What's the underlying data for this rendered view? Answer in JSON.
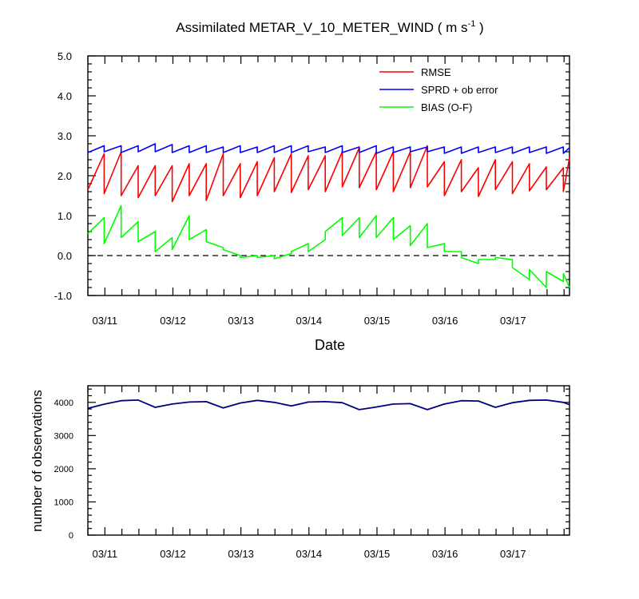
{
  "colors": {
    "rmse": "#ff0000",
    "sprd": "#0000ff",
    "bias": "#00ff00",
    "nobs": "#000080",
    "frame": "#000000",
    "zero_line": "#000000"
  },
  "chart_data": [
    {
      "type": "line",
      "title": "Assimilated METAR_V_10_METER_WIND ( m s",
      "title_sup": "-1",
      "title_tail": " )",
      "xlabel": "Date",
      "ylabel": "",
      "ylim": [
        -1.0,
        5.0
      ],
      "ytick_values": [
        -1,
        0,
        1,
        2,
        3,
        4,
        5
      ],
      "ytick_labels": [
        "-1.0",
        "0.0",
        "1.0",
        "2.0",
        "3.0",
        "4.0",
        "5.0"
      ],
      "xlim": [
        10.75,
        17.83
      ],
      "xtick_values": [
        11,
        12,
        13,
        14,
        15,
        16,
        17
      ],
      "xtick_labels": [
        "03/11",
        "03/12",
        "03/13",
        "03/14",
        "03/15",
        "03/16",
        "03/17"
      ],
      "grid": false,
      "zero_line": "dashed",
      "legend": "top-right",
      "series": [
        {
          "name": "RMSE",
          "color_key": "rmse",
          "x": [
            10.75,
            10.99,
            10.99,
            11.24,
            11.24,
            11.49,
            11.49,
            11.74,
            11.74,
            11.99,
            11.99,
            12.24,
            12.24,
            12.49,
            12.49,
            12.74,
            12.74,
            12.99,
            12.99,
            13.24,
            13.24,
            13.49,
            13.49,
            13.74,
            13.74,
            13.99,
            13.99,
            14.24,
            14.24,
            14.49,
            14.49,
            14.74,
            14.74,
            14.99,
            14.99,
            15.24,
            15.24,
            15.49,
            15.49,
            15.74,
            15.74,
            15.99,
            15.99,
            16.24,
            16.24,
            16.49,
            16.49,
            16.74,
            16.74,
            16.99,
            16.99,
            17.24,
            17.24,
            17.49,
            17.49,
            17.74,
            17.74,
            17.83
          ],
          "y": [
            1.65,
            2.55,
            1.55,
            2.6,
            1.5,
            2.25,
            1.45,
            2.25,
            1.5,
            2.25,
            1.35,
            2.3,
            1.5,
            2.3,
            1.38,
            2.55,
            1.5,
            2.3,
            1.45,
            2.35,
            1.5,
            2.45,
            1.6,
            2.55,
            1.58,
            2.5,
            1.65,
            2.5,
            1.6,
            2.6,
            1.72,
            2.7,
            1.7,
            2.6,
            1.65,
            2.6,
            1.6,
            2.6,
            1.7,
            2.75,
            1.72,
            2.35,
            1.5,
            2.4,
            1.6,
            2.2,
            1.48,
            2.4,
            1.65,
            2.35,
            1.55,
            2.3,
            1.62,
            2.22,
            1.65,
            2.2,
            1.6,
            2.45
          ]
        },
        {
          "name": "SPRD + ob error",
          "color_key": "sprd",
          "x": [
            10.75,
            10.99,
            10.99,
            11.24,
            11.24,
            11.49,
            11.49,
            11.74,
            11.74,
            11.99,
            11.99,
            12.24,
            12.24,
            12.49,
            12.49,
            12.74,
            12.74,
            12.99,
            12.99,
            13.24,
            13.24,
            13.49,
            13.49,
            13.74,
            13.74,
            13.99,
            13.99,
            14.24,
            14.24,
            14.49,
            14.49,
            14.74,
            14.74,
            14.99,
            14.99,
            15.24,
            15.24,
            15.49,
            15.49,
            15.74,
            15.74,
            15.99,
            15.99,
            16.24,
            16.24,
            16.49,
            16.49,
            16.74,
            16.74,
            16.99,
            16.99,
            17.24,
            17.24,
            17.49,
            17.49,
            17.74,
            17.74,
            17.83
          ],
          "y": [
            2.58,
            2.75,
            2.6,
            2.75,
            2.58,
            2.75,
            2.6,
            2.8,
            2.6,
            2.78,
            2.58,
            2.75,
            2.58,
            2.75,
            2.58,
            2.72,
            2.58,
            2.75,
            2.58,
            2.72,
            2.58,
            2.75,
            2.58,
            2.75,
            2.58,
            2.75,
            2.6,
            2.72,
            2.58,
            2.75,
            2.58,
            2.72,
            2.58,
            2.75,
            2.56,
            2.72,
            2.58,
            2.72,
            2.6,
            2.72,
            2.6,
            2.72,
            2.56,
            2.72,
            2.56,
            2.72,
            2.58,
            2.72,
            2.58,
            2.72,
            2.56,
            2.72,
            2.58,
            2.72,
            2.56,
            2.72,
            2.56,
            2.7
          ]
        },
        {
          "name": "BIAS (O-F)",
          "color_key": "bias",
          "x": [
            10.75,
            10.99,
            10.99,
            11.24,
            11.24,
            11.49,
            11.49,
            11.74,
            11.74,
            11.99,
            11.99,
            12.24,
            12.24,
            12.49,
            12.49,
            12.74,
            12.74,
            12.99,
            12.99,
            13.24,
            13.24,
            13.49,
            13.49,
            13.74,
            13.74,
            13.99,
            13.99,
            14.24,
            14.24,
            14.49,
            14.49,
            14.74,
            14.74,
            14.99,
            14.99,
            15.24,
            15.24,
            15.49,
            15.49,
            15.74,
            15.74,
            15.99,
            15.99,
            16.24,
            16.24,
            16.49,
            16.49,
            16.74,
            16.74,
            16.99,
            16.99,
            17.24,
            17.24,
            17.49,
            17.49,
            17.74,
            17.74,
            17.83
          ],
          "y": [
            0.55,
            0.95,
            0.3,
            1.25,
            0.45,
            0.85,
            0.35,
            0.6,
            0.1,
            0.45,
            0.15,
            1.0,
            0.4,
            0.65,
            0.35,
            0.2,
            0.15,
            0.0,
            -0.05,
            0.0,
            -0.05,
            0.0,
            -0.08,
            0.05,
            0.1,
            0.3,
            0.1,
            0.4,
            0.6,
            0.95,
            0.5,
            0.95,
            0.45,
            1.0,
            0.45,
            0.95,
            0.4,
            0.75,
            0.25,
            0.8,
            0.2,
            0.3,
            0.1,
            0.1,
            -0.05,
            -0.2,
            -0.1,
            -0.1,
            -0.05,
            -0.1,
            -0.3,
            -0.6,
            -0.35,
            -0.8,
            -0.4,
            -0.65,
            -0.45,
            -0.8
          ]
        }
      ]
    },
    {
      "type": "line",
      "title": "",
      "xlabel": "",
      "ylabel": "number of observations",
      "ylim": [
        0,
        4500
      ],
      "ytick_values": [
        0,
        1000,
        2000,
        3000,
        4000
      ],
      "ytick_labels": [
        "0",
        "1000",
        "2000",
        "3000",
        "4000"
      ],
      "xlim": [
        10.75,
        17.83
      ],
      "xtick_values": [
        11,
        12,
        13,
        14,
        15,
        16,
        17
      ],
      "xtick_labels": [
        "03/11",
        "03/12",
        "03/13",
        "03/14",
        "03/15",
        "03/16",
        "03/17"
      ],
      "grid": false,
      "legend": "none",
      "series": [
        {
          "color_key": "nobs",
          "x": [
            10.75,
            11.0,
            11.24,
            11.49,
            11.74,
            11.99,
            12.24,
            12.49,
            12.74,
            12.99,
            13.24,
            13.49,
            13.74,
            13.99,
            14.24,
            14.49,
            14.74,
            14.99,
            15.24,
            15.49,
            15.74,
            15.99,
            16.24,
            16.49,
            16.74,
            16.99,
            17.24,
            17.49,
            17.74,
            17.83
          ],
          "y": [
            3820,
            3950,
            4050,
            4070,
            3850,
            3950,
            4010,
            4020,
            3830,
            3980,
            4060,
            4000,
            3890,
            4010,
            4020,
            3990,
            3780,
            3860,
            3950,
            3960,
            3780,
            3950,
            4050,
            4040,
            3850,
            3990,
            4060,
            4070,
            4000,
            3930
          ]
        }
      ]
    }
  ]
}
